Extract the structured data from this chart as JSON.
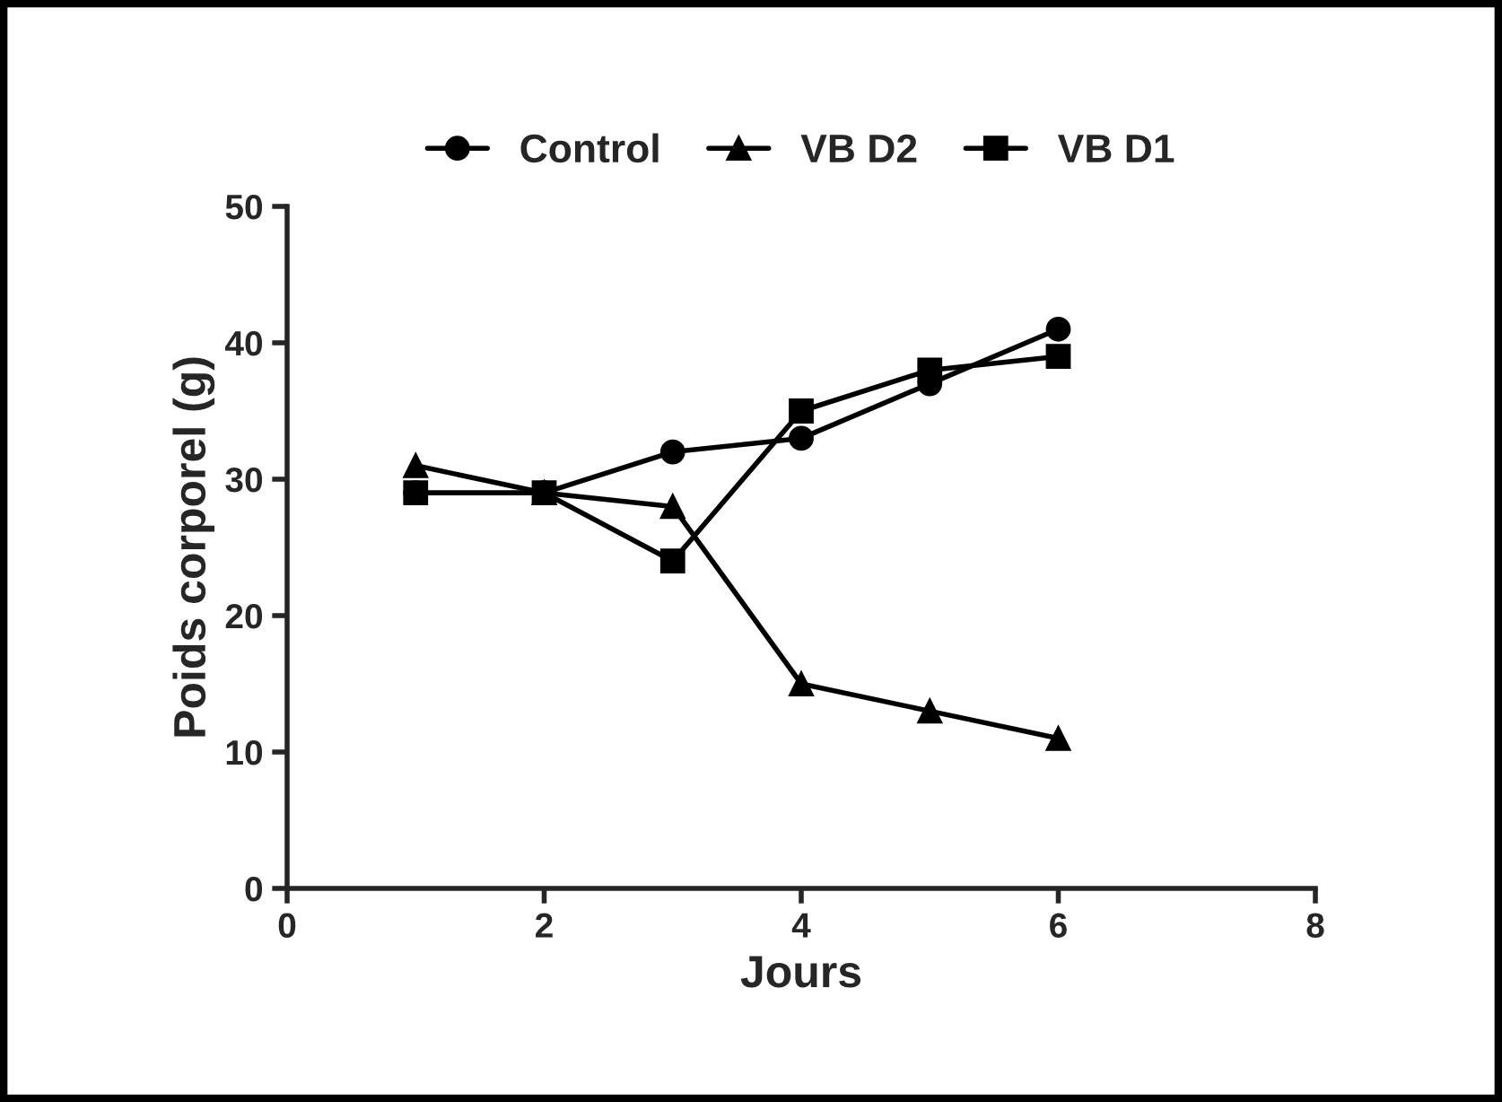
{
  "chart_data": {
    "type": "line",
    "xlabel": "Jours",
    "ylabel": "Poids corporel (g)",
    "x": [
      1,
      2,
      3,
      4,
      5,
      6
    ],
    "series": [
      {
        "name": "Control",
        "color": "#000000",
        "marker": "circle",
        "values": [
          29,
          29,
          32,
          33,
          37,
          41
        ]
      },
      {
        "name": "VB D2",
        "color": "#000000",
        "marker": "triangle",
        "values": [
          31,
          29,
          28,
          15,
          13,
          11
        ]
      },
      {
        "name": "VB D1",
        "color": "#000000",
        "marker": "square",
        "values": [
          29,
          29,
          24,
          35,
          38,
          39
        ]
      }
    ],
    "xlim": [
      0,
      8
    ],
    "xticks": [
      0,
      2,
      4,
      6,
      8
    ],
    "ylim": [
      0,
      50
    ],
    "yticks": [
      0,
      10,
      20,
      30,
      40,
      50
    ],
    "grid": false,
    "legend": "top",
    "line_style": "solid"
  }
}
